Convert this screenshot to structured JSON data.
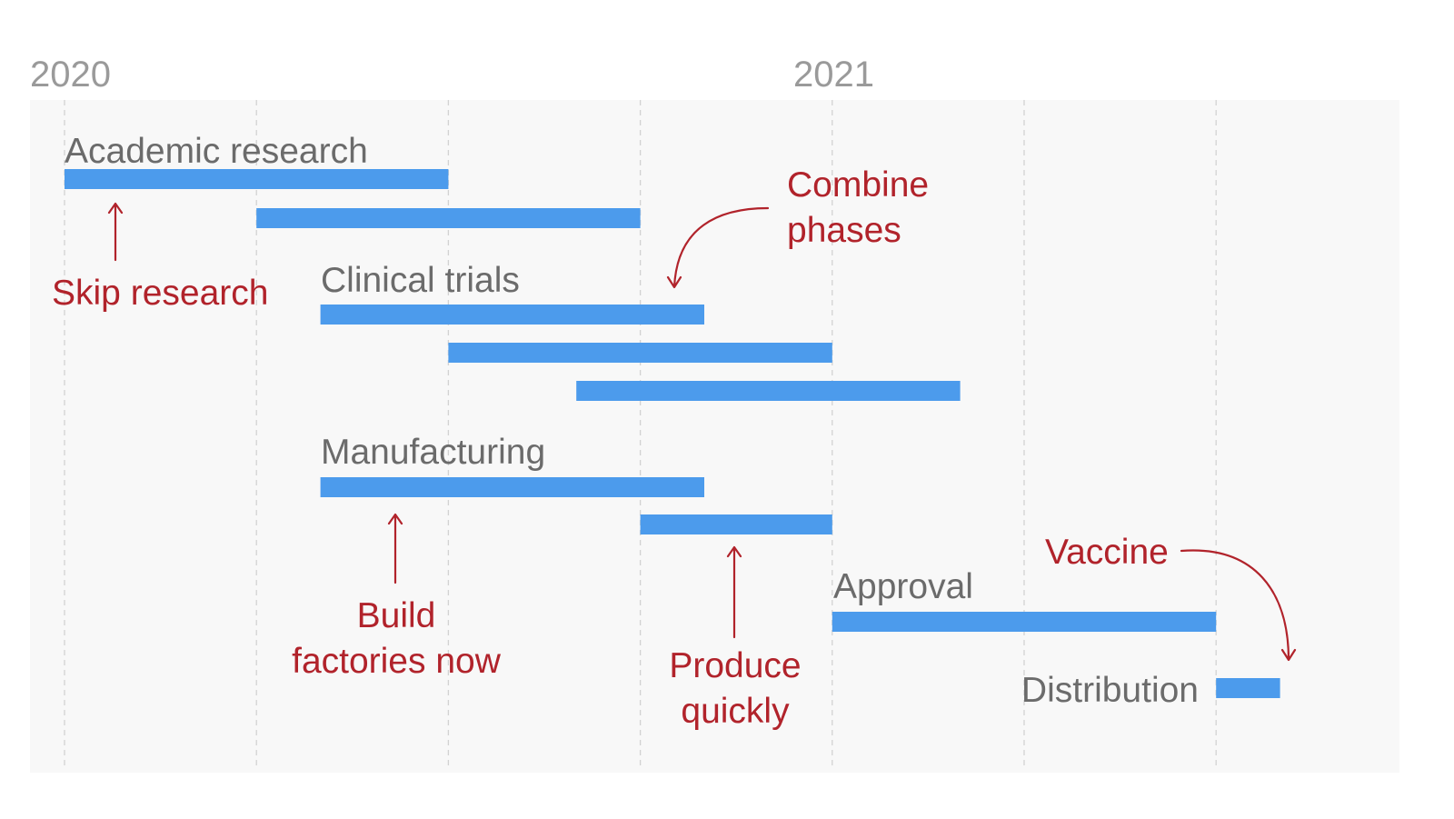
{
  "colors": {
    "bar": "#4c9bec",
    "annotation": "#b1232b",
    "panel": "#f8f8f8"
  },
  "chart_data": {
    "type": "gantt",
    "title": "",
    "x_axis": {
      "ticks": [
        "2020",
        "2021"
      ],
      "range_months": [
        0,
        21
      ]
    },
    "grid": true,
    "categories": [
      {
        "label": "Academic research",
        "bars": [
          {
            "start": 0,
            "end": 6
          },
          {
            "start": 3,
            "end": 9
          }
        ]
      },
      {
        "label": "Clinical trials",
        "bars": [
          {
            "start": 4,
            "end": 10
          },
          {
            "start": 6,
            "end": 12
          },
          {
            "start": 8,
            "end": 14
          }
        ]
      },
      {
        "label": "Manufacturing",
        "bars": [
          {
            "start": 4,
            "end": 10
          },
          {
            "start": 9,
            "end": 12
          }
        ]
      },
      {
        "label": "Approval",
        "bars": [
          {
            "start": 12,
            "end": 18
          }
        ]
      },
      {
        "label": "Distribution",
        "bars": [
          {
            "start": 18,
            "end": 19
          }
        ]
      }
    ],
    "annotations": [
      {
        "id": "skip",
        "lines": [
          "Skip research"
        ]
      },
      {
        "id": "combine",
        "lines": [
          "Combine",
          "phases"
        ]
      },
      {
        "id": "factories",
        "lines": [
          "Build",
          "factories now"
        ]
      },
      {
        "id": "produce",
        "lines": [
          "Produce",
          "quickly"
        ]
      },
      {
        "id": "vaccine",
        "lines": [
          "Vaccine"
        ]
      }
    ]
  }
}
